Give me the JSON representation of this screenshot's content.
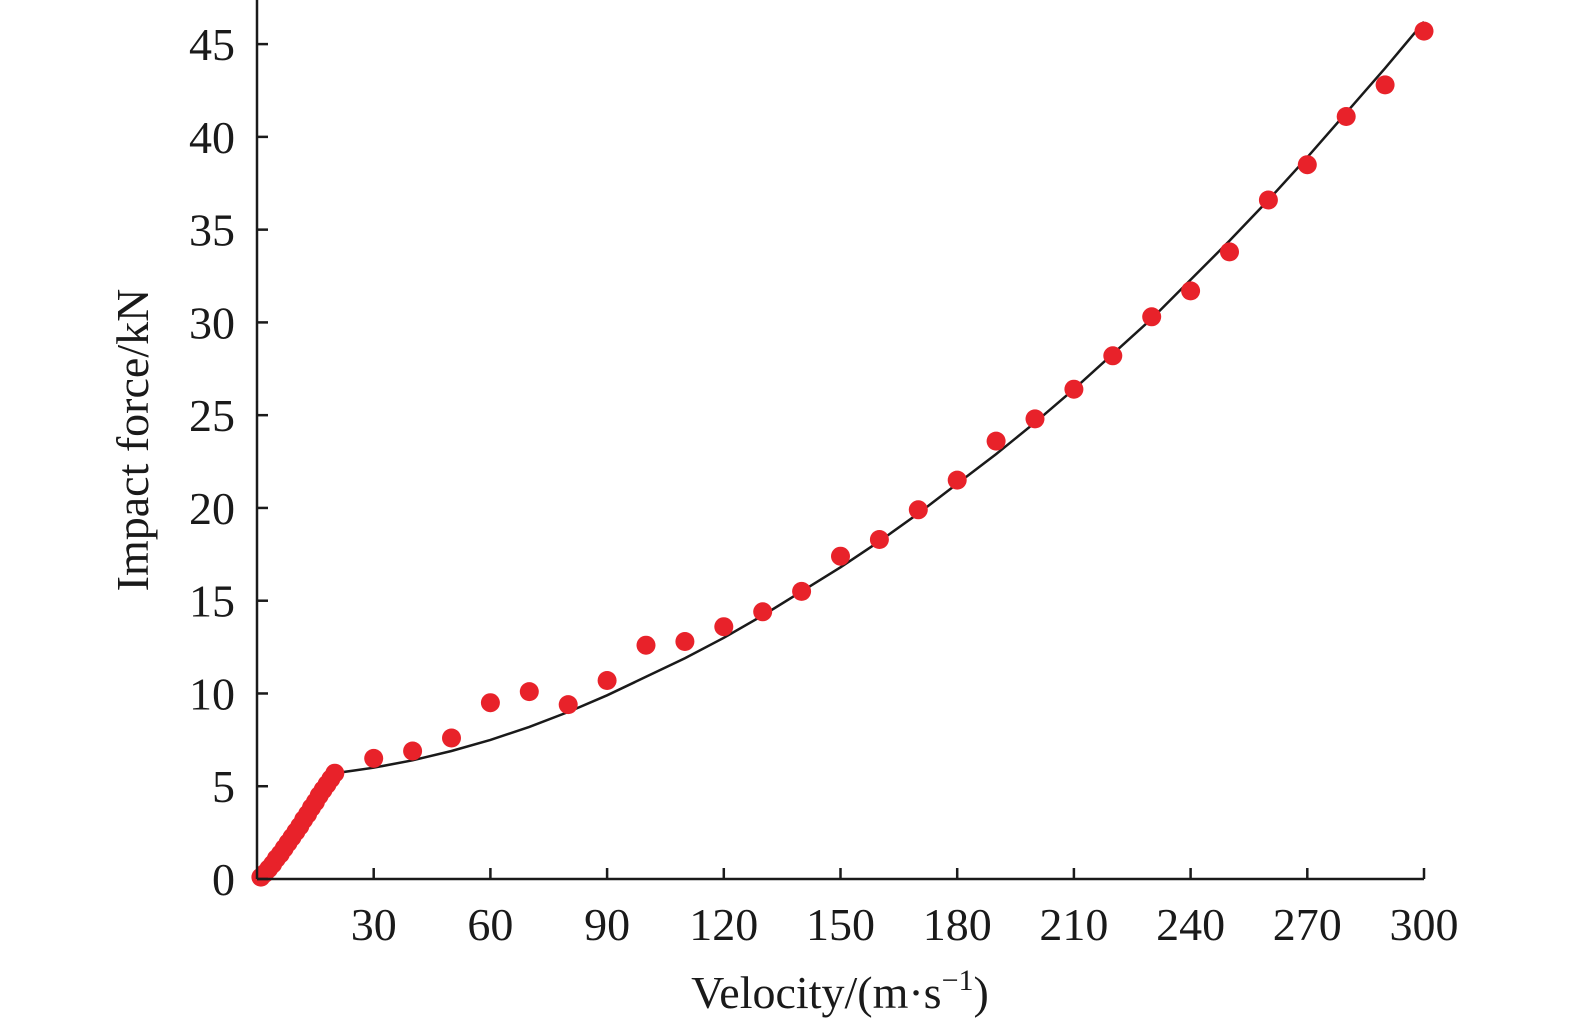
{
  "chart_data": {
    "type": "scatter",
    "xlabel": "Velocity/(m·s",
    "xlabel_superscript": "−1",
    "xlabel_suffix": ")",
    "ylabel": "Impact force/kN",
    "xlim": [
      0,
      300
    ],
    "ylim": [
      0,
      47
    ],
    "x_ticks": [
      30,
      60,
      90,
      120,
      150,
      180,
      210,
      240,
      270,
      300
    ],
    "y_ticks": [
      0,
      5,
      10,
      15,
      20,
      25,
      30,
      35,
      40,
      45
    ],
    "grid": false,
    "marker_color": "#e8222a",
    "line_color": "#1a1a1a",
    "series": [
      {
        "kind": "points",
        "x": [
          1,
          2,
          3,
          4,
          5,
          6,
          7,
          8,
          9,
          10,
          11,
          12,
          13,
          14,
          15,
          16,
          17,
          18,
          19,
          20,
          30,
          40,
          50,
          60,
          70,
          80,
          90,
          100,
          110,
          120,
          130,
          140,
          150,
          160,
          170,
          180,
          190,
          200,
          210,
          220,
          230,
          240,
          250,
          260,
          270,
          280,
          290,
          300
        ],
        "y": [
          0.1,
          0.3,
          0.55,
          0.8,
          1.1,
          1.35,
          1.65,
          1.95,
          2.25,
          2.55,
          2.85,
          3.2,
          3.5,
          3.85,
          4.15,
          4.5,
          4.8,
          5.1,
          5.4,
          5.7,
          6.5,
          6.9,
          7.6,
          9.5,
          10.1,
          9.4,
          10.7,
          12.6,
          12.8,
          13.6,
          14.4,
          15.5,
          17.4,
          18.3,
          19.9,
          21.5,
          23.6,
          24.8,
          26.4,
          28.2,
          30.3,
          31.7,
          33.8,
          36.6,
          38.5,
          41.1,
          42.8,
          45.7
        ]
      },
      {
        "kind": "line",
        "x": [
          1,
          20,
          25,
          30,
          40,
          50,
          60,
          70,
          80,
          90,
          100,
          110,
          120,
          130,
          140,
          150,
          160,
          170,
          180,
          190,
          200,
          210,
          220,
          230,
          240,
          250,
          260,
          270,
          280,
          290,
          300
        ],
        "y": [
          0.05,
          5.7,
          5.85,
          6.0,
          6.4,
          6.9,
          7.5,
          8.2,
          9.0,
          9.9,
          10.9,
          11.9,
          13.0,
          14.2,
          15.5,
          16.8,
          18.2,
          19.7,
          21.3,
          22.9,
          24.6,
          26.4,
          28.3,
          30.2,
          32.3,
          34.4,
          36.6,
          38.9,
          41.3,
          43.7,
          46.2
        ]
      }
    ]
  }
}
